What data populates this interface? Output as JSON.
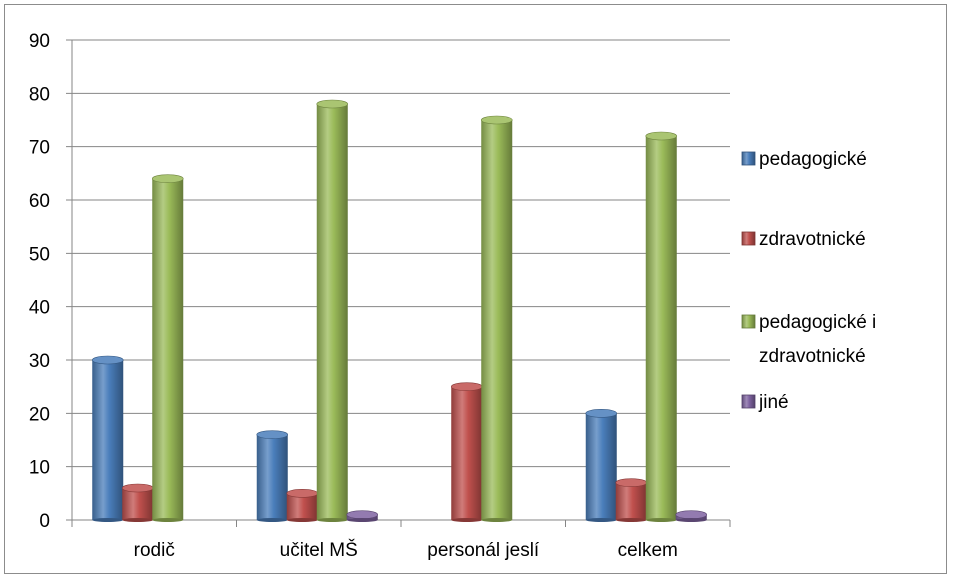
{
  "chart_data": {
    "type": "bar",
    "categories": [
      "rodič",
      "učitel MŠ",
      "personál jeslí",
      "celkem"
    ],
    "series": [
      {
        "name": "pedagogické",
        "values": [
          30,
          16,
          0,
          20
        ],
        "color": "#4a7ebb"
      },
      {
        "name": "zdravotnické",
        "values": [
          6,
          5,
          25,
          7
        ],
        "color": "#c0504d"
      },
      {
        "name": [
          "pedagogické i",
          "zdravotnické"
        ],
        "values": [
          64,
          78,
          75,
          72
        ],
        "color": "#9bbb59"
      },
      {
        "name": "jiné",
        "values": [
          0,
          1,
          0,
          1
        ],
        "color": "#8064a2"
      }
    ],
    "ylim": [
      0,
      90
    ],
    "yticks": [
      0,
      10,
      20,
      30,
      40,
      50,
      60,
      70,
      80,
      90
    ],
    "grid": true,
    "legend": "right",
    "style": "3d-cylinder-bars"
  }
}
